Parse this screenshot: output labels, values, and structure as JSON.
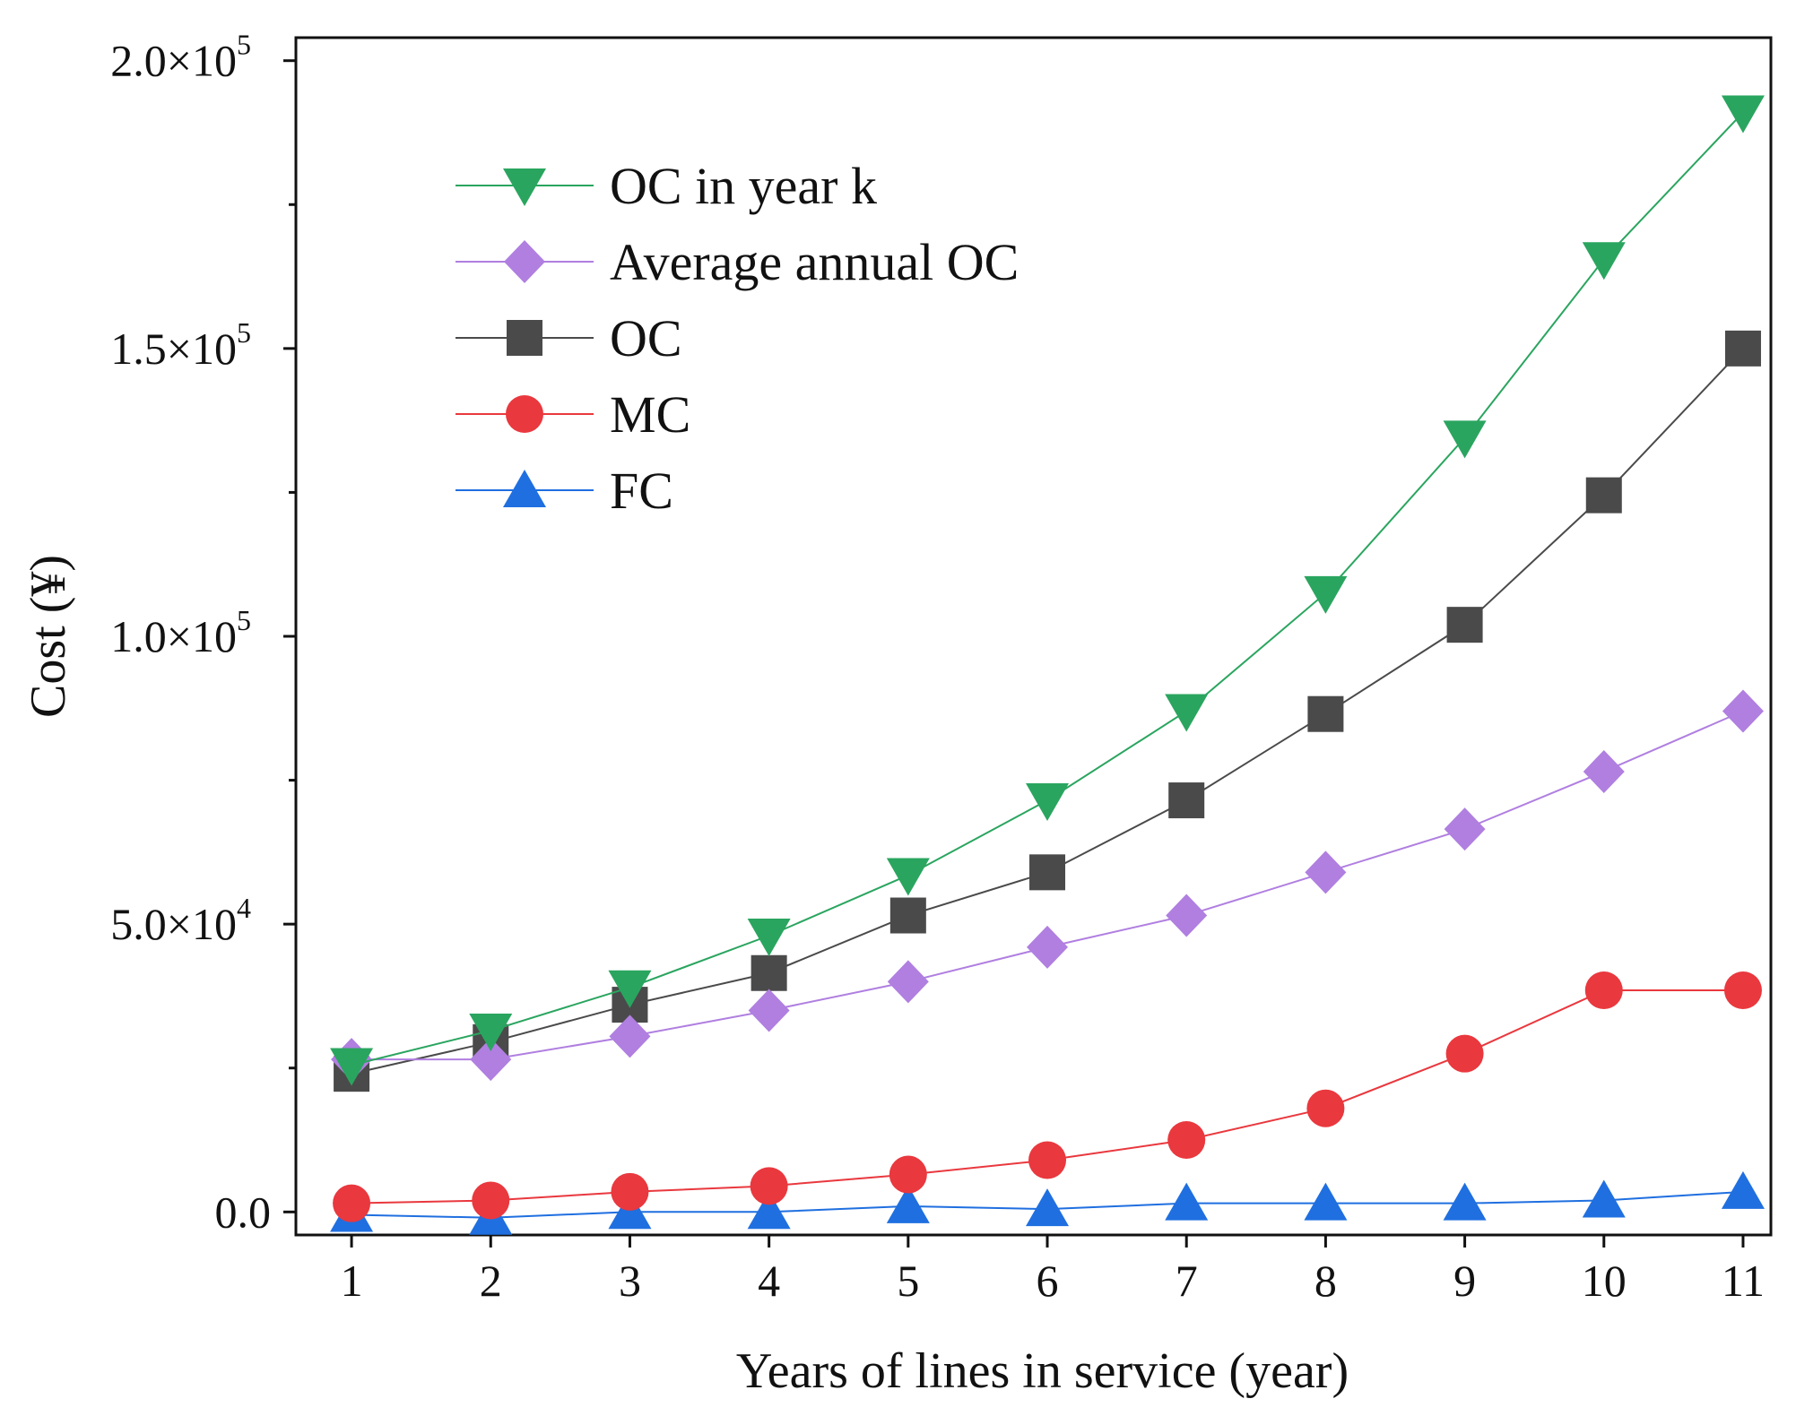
{
  "chart_data": {
    "type": "line",
    "title": "",
    "xlabel": "Years of lines in service (year)",
    "ylabel": "Cost (¥)",
    "x": [
      1,
      2,
      3,
      4,
      5,
      6,
      7,
      8,
      9,
      10,
      11
    ],
    "xlim": [
      0.6,
      11.2
    ],
    "ylim": [
      -4000,
      204000
    ],
    "xticks": [
      "1",
      "2",
      "3",
      "4",
      "5",
      "6",
      "7",
      "8",
      "9",
      "10",
      "11"
    ],
    "yticks": [
      {
        "value": 0,
        "mantissa": "0.0",
        "exp": ""
      },
      {
        "value": 50000,
        "mantissa": "5.0×10",
        "exp": "4"
      },
      {
        "value": 100000,
        "mantissa": "1.0×10",
        "exp": "5"
      },
      {
        "value": 150000,
        "mantissa": "1.5×10",
        "exp": "5"
      },
      {
        "value": 200000,
        "mantissa": "2.0×10",
        "exp": "5"
      }
    ],
    "legend_position": "top-left",
    "series": [
      {
        "name": "OC in year k",
        "color": "#2aa55f",
        "marker": "triangle-down",
        "values": [
          25500,
          31500,
          39000,
          48000,
          58500,
          71500,
          87000,
          107500,
          134500,
          165500,
          191000
        ]
      },
      {
        "name": "Average annual OC",
        "color": "#b07fe0",
        "marker": "diamond",
        "values": [
          26500,
          26500,
          30500,
          35000,
          40000,
          46000,
          51500,
          59000,
          66500,
          76500,
          87000
        ]
      },
      {
        "name": "OC",
        "color": "#4a4a4a",
        "marker": "square",
        "values": [
          24000,
          29500,
          36000,
          41500,
          51500,
          59000,
          71500,
          86500,
          102000,
          124500,
          150000
        ]
      },
      {
        "name": "MC",
        "color": "#e9383e",
        "marker": "circle",
        "values": [
          1500,
          2000,
          3500,
          4500,
          6500,
          9000,
          12500,
          18000,
          27500,
          38500,
          38500
        ]
      },
      {
        "name": "FC",
        "color": "#1f6fe0",
        "marker": "triangle-up",
        "values": [
          -500,
          -1000,
          0,
          0,
          1000,
          500,
          1500,
          1500,
          1500,
          2000,
          3500
        ]
      }
    ]
  }
}
